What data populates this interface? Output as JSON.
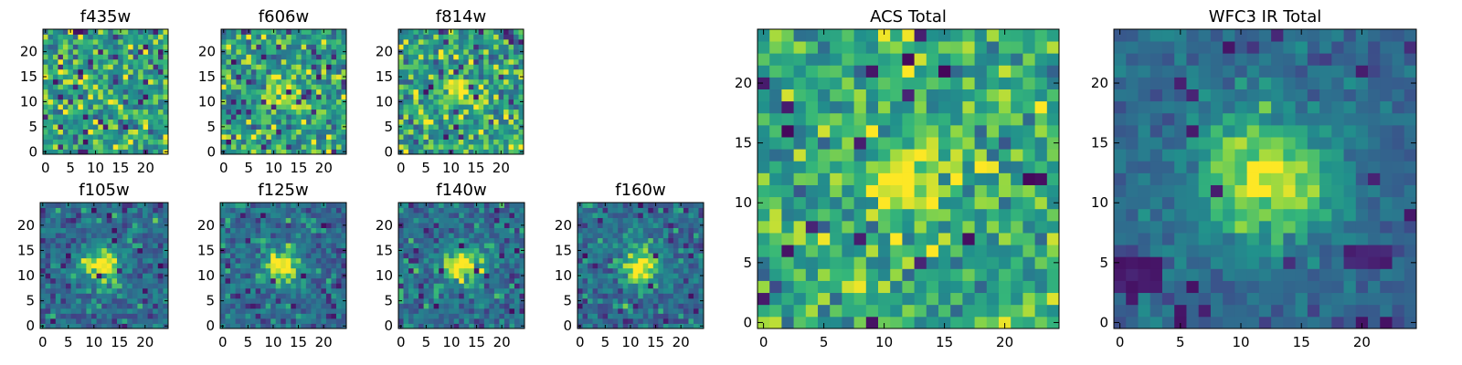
{
  "chart_data": [
    {
      "type": "heatmap",
      "title": "f435w",
      "panel": "small",
      "pattern": "noise",
      "xlim": [
        0,
        25
      ],
      "ylim": [
        0,
        25
      ],
      "xticks": [
        0,
        5,
        10,
        15,
        20
      ],
      "yticks": [
        0,
        5,
        10,
        15,
        20
      ],
      "colormap": "viridis",
      "seed": 11
    },
    {
      "type": "heatmap",
      "title": "f606w",
      "panel": "small",
      "pattern": "weak",
      "xlim": [
        0,
        25
      ],
      "ylim": [
        0,
        25
      ],
      "xticks": [
        0,
        5,
        10,
        15,
        20
      ],
      "yticks": [
        0,
        5,
        10,
        15,
        20
      ],
      "colormap": "viridis",
      "seed": 23
    },
    {
      "type": "heatmap",
      "title": "f814w",
      "panel": "small",
      "pattern": "weak",
      "xlim": [
        0,
        25
      ],
      "ylim": [
        0,
        25
      ],
      "xticks": [
        0,
        5,
        10,
        15,
        20
      ],
      "yticks": [
        0,
        5,
        10,
        15,
        20
      ],
      "colormap": "viridis",
      "seed": 37
    },
    {
      "type": "heatmap",
      "title": "f105w",
      "panel": "small",
      "pattern": "source",
      "xlim": [
        0,
        25
      ],
      "ylim": [
        0,
        25
      ],
      "xticks": [
        0,
        5,
        10,
        15,
        20
      ],
      "yticks": [
        0,
        5,
        10,
        15,
        20
      ],
      "colormap": "viridis",
      "seed": 41
    },
    {
      "type": "heatmap",
      "title": "f125w",
      "panel": "small",
      "pattern": "source",
      "xlim": [
        0,
        25
      ],
      "ylim": [
        0,
        25
      ],
      "xticks": [
        0,
        5,
        10,
        15,
        20
      ],
      "yticks": [
        0,
        5,
        10,
        15,
        20
      ],
      "colormap": "viridis",
      "seed": 53
    },
    {
      "type": "heatmap",
      "title": "f140w",
      "panel": "small",
      "pattern": "source",
      "xlim": [
        0,
        25
      ],
      "ylim": [
        0,
        25
      ],
      "xticks": [
        0,
        5,
        10,
        15,
        20
      ],
      "yticks": [
        0,
        5,
        10,
        15,
        20
      ],
      "colormap": "viridis",
      "seed": 67
    },
    {
      "type": "heatmap",
      "title": "f160w",
      "panel": "small",
      "pattern": "source",
      "xlim": [
        0,
        25
      ],
      "ylim": [
        0,
        25
      ],
      "xticks": [
        0,
        5,
        10,
        15,
        20
      ],
      "yticks": [
        0,
        5,
        10,
        15,
        20
      ],
      "colormap": "viridis",
      "seed": 79
    },
    {
      "type": "heatmap",
      "title": "ACS Total",
      "panel": "large",
      "pattern": "acs",
      "xlim": [
        0,
        25
      ],
      "ylim": [
        0,
        25
      ],
      "xticks": [
        0,
        5,
        10,
        15,
        20
      ],
      "yticks": [
        0,
        5,
        10,
        15,
        20
      ],
      "colormap": "viridis",
      "seed": 97
    },
    {
      "type": "heatmap",
      "title": "WFC3 IR Total",
      "panel": "large",
      "pattern": "ir",
      "xlim": [
        0,
        25
      ],
      "ylim": [
        0,
        25
      ],
      "xticks": [
        0,
        5,
        10,
        15,
        20
      ],
      "yticks": [
        0,
        5,
        10,
        15,
        20
      ],
      "colormap": "viridis",
      "seed": 113
    }
  ],
  "source_center": [
    12.5,
    12.5
  ],
  "grid_size": 25
}
